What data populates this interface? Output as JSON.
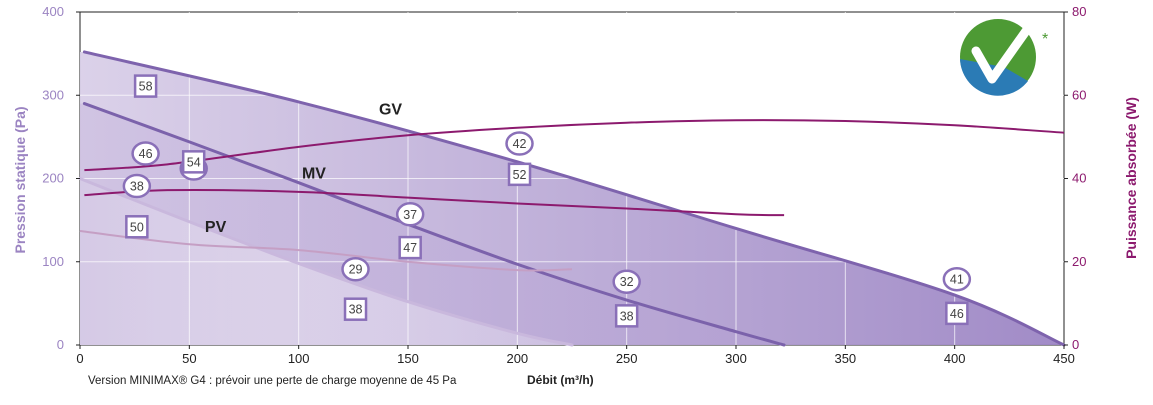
{
  "chart_data": {
    "type": "line",
    "title": "",
    "xlabel": "Débit (m³/h)",
    "ylabel": "Pression statique (Pa)",
    "y2label": "Puissance absorbée (W)",
    "xlim": [
      0,
      450
    ],
    "ylim": [
      0,
      400
    ],
    "y2lim": [
      0,
      80
    ],
    "x_ticks": [
      0,
      50,
      100,
      150,
      200,
      250,
      300,
      350,
      400,
      450
    ],
    "y_ticks": [
      0,
      100,
      200,
      300,
      400
    ],
    "y2_ticks": [
      0,
      20,
      40,
      60,
      80
    ],
    "grid": true,
    "pressure_curves": [
      {
        "name": "GV",
        "points": [
          [
            2,
            352
          ],
          [
            100,
            292
          ],
          [
            200,
            220
          ],
          [
            300,
            140
          ],
          [
            400,
            60
          ],
          [
            450,
            0
          ]
        ]
      },
      {
        "name": "MV",
        "points": [
          [
            2,
            290
          ],
          [
            50,
            244
          ],
          [
            100,
            195
          ],
          [
            150,
            145
          ],
          [
            200,
            97
          ],
          [
            250,
            54
          ],
          [
            300,
            16
          ],
          [
            322,
            0
          ]
        ]
      },
      {
        "name": "PV",
        "points": [
          [
            0,
            200
          ],
          [
            50,
            148
          ],
          [
            100,
            98
          ],
          [
            150,
            52
          ],
          [
            200,
            14
          ],
          [
            225,
            0
          ]
        ]
      }
    ],
    "power_curves": [
      {
        "curve": "GV",
        "points": [
          [
            2,
            42
          ],
          [
            40,
            43.4
          ],
          [
            100,
            47.6
          ],
          [
            150,
            50.4
          ],
          [
            200,
            52.2
          ],
          [
            250,
            53.4
          ],
          [
            300,
            54
          ],
          [
            350,
            53.8
          ],
          [
            400,
            52.8
          ],
          [
            450,
            51
          ]
        ]
      },
      {
        "curve": "MV",
        "points": [
          [
            2,
            36
          ],
          [
            40,
            37.2
          ],
          [
            100,
            36.8
          ],
          [
            150,
            35.4
          ],
          [
            200,
            34
          ],
          [
            250,
            32.8
          ],
          [
            300,
            31.4
          ],
          [
            322,
            31.2
          ]
        ]
      },
      {
        "curve": "PV",
        "points": [
          [
            0,
            27.4
          ],
          [
            50,
            24.2
          ],
          [
            100,
            22.8
          ],
          [
            150,
            20
          ],
          [
            200,
            18
          ],
          [
            225,
            18.2
          ]
        ]
      }
    ],
    "annotations": [
      {
        "x": 30,
        "y": 46,
        "shape": "circle",
        "axis": "y2",
        "value": "46"
      },
      {
        "x": 30,
        "y": 311,
        "shape": "square",
        "axis": "y",
        "value": "58"
      },
      {
        "x": 52,
        "y": 42.4,
        "shape": "circle",
        "axis": "y2",
        "value": "42"
      },
      {
        "x": 52,
        "y": 220,
        "shape": "square",
        "axis": "y",
        "value": "54"
      },
      {
        "x": 26,
        "y": 38.2,
        "shape": "circle",
        "axis": "y2",
        "value": "38"
      },
      {
        "x": 26,
        "y": 142,
        "shape": "square",
        "axis": "y",
        "value": "50"
      },
      {
        "x": 201,
        "y": 48.4,
        "shape": "circle",
        "axis": "y2",
        "value": "42"
      },
      {
        "x": 201,
        "y": 205,
        "shape": "square",
        "axis": "y",
        "value": "52"
      },
      {
        "x": 151,
        "y": 31.4,
        "shape": "circle",
        "axis": "y2",
        "value": "37"
      },
      {
        "x": 151,
        "y": 117,
        "shape": "square",
        "axis": "y",
        "value": "47"
      },
      {
        "x": 126,
        "y": 18.2,
        "shape": "circle",
        "axis": "y2",
        "value": "29"
      },
      {
        "x": 126,
        "y": 43,
        "shape": "square",
        "axis": "y",
        "value": "38"
      },
      {
        "x": 250,
        "y": 15.2,
        "shape": "circle",
        "axis": "y2",
        "value": "32"
      },
      {
        "x": 250,
        "y": 35,
        "shape": "square",
        "axis": "y",
        "value": "38"
      },
      {
        "x": 401,
        "y": 15.8,
        "shape": "circle",
        "axis": "y2",
        "value": "41"
      },
      {
        "x": 401,
        "y": 38,
        "shape": "square",
        "axis": "y",
        "value": "46"
      }
    ],
    "curve_labels": [
      {
        "text": "GV",
        "x": 142,
        "y": 277
      },
      {
        "text": "MV",
        "x": 107,
        "y": 200
      },
      {
        "text": "PV",
        "x": 62,
        "y": 136
      }
    ],
    "footnote": "Version MINIMAX® G4 : prévoir une perte de charge moyenne de 45 Pa",
    "logo_asterisk": "*",
    "colors": {
      "axis_left": "#9b84c2",
      "axis_right": "#8c1a6e",
      "pressure_gv": "#7e63ad",
      "pressure_mv": "#7b62ab",
      "pressure_pv": "#c9b8dd",
      "power_gv": "#8c1a6e",
      "power_mv": "#8c1a6e",
      "power_pv": "#c59fc4",
      "marker": "#8a70b8",
      "grid": "#ffffff",
      "logo_green": "#4d9a34",
      "logo_blue": "#2b7bb5"
    }
  }
}
